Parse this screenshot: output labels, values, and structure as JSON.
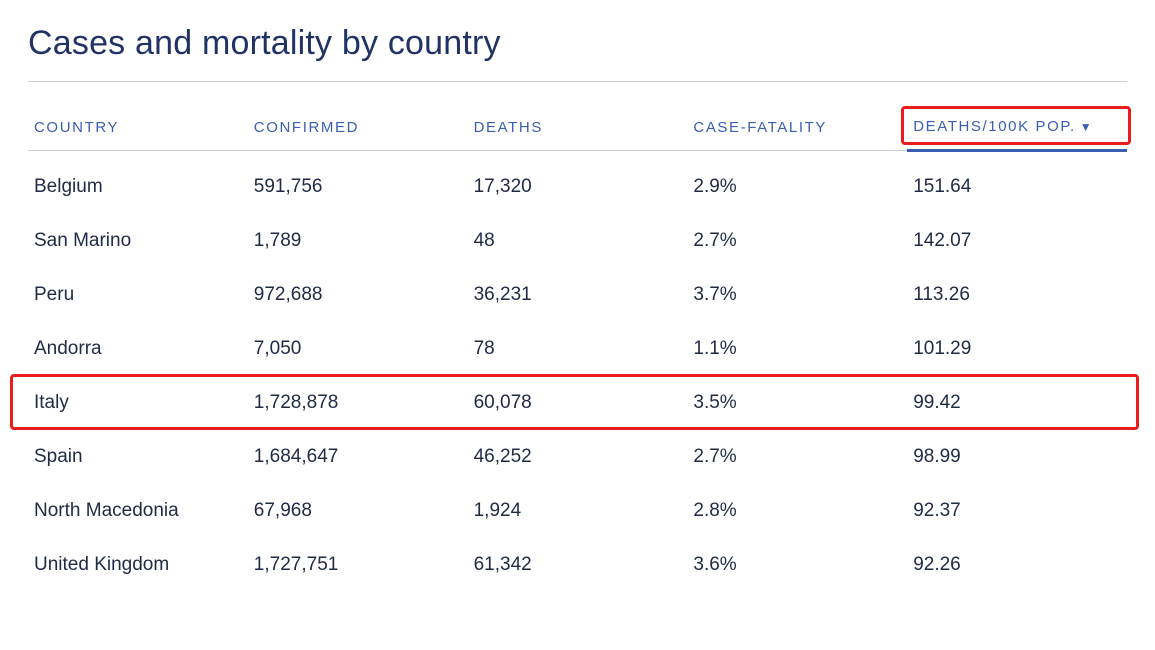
{
  "title": "Cases and mortality by country",
  "table": {
    "type": "table",
    "title_color": "#213365",
    "title_fontsize": 34,
    "header_color": "#3a5fb0",
    "header_fontsize": 15,
    "header_letter_spacing": 1.6,
    "cell_color": "#1f2a44",
    "cell_fontsize": 19,
    "rule_color": "#c9d1de",
    "sorted_underline_color": "#3a5fb0",
    "highlight_border_color": "#e91d1d",
    "sort_arrow_glyph": "▼",
    "sorted_column_index": 4,
    "highlighted_header_index": 4,
    "highlighted_row_index": 4,
    "columns": [
      {
        "label": "COUNTRY",
        "width_pct": 20,
        "align": "left"
      },
      {
        "label": "CONFIRMED",
        "width_pct": 20,
        "align": "left"
      },
      {
        "label": "DEATHS",
        "width_pct": 20,
        "align": "left"
      },
      {
        "label": "CASE-FATALITY",
        "width_pct": 20,
        "align": "left"
      },
      {
        "label": "DEATHS/100K POP.",
        "width_pct": 20,
        "align": "left"
      }
    ],
    "rows": [
      {
        "country": "Belgium",
        "confirmed": "591,756",
        "deaths": "17,320",
        "cfr": "2.9%",
        "d100k": "151.64"
      },
      {
        "country": "San Marino",
        "confirmed": "1,789",
        "deaths": "48",
        "cfr": "2.7%",
        "d100k": "142.07"
      },
      {
        "country": "Peru",
        "confirmed": "972,688",
        "deaths": "36,231",
        "cfr": "3.7%",
        "d100k": "113.26"
      },
      {
        "country": "Andorra",
        "confirmed": "7,050",
        "deaths": "78",
        "cfr": "1.1%",
        "d100k": "101.29"
      },
      {
        "country": "Italy",
        "confirmed": "1,728,878",
        "deaths": "60,078",
        "cfr": "3.5%",
        "d100k": "99.42"
      },
      {
        "country": "Spain",
        "confirmed": "1,684,647",
        "deaths": "46,252",
        "cfr": "2.7%",
        "d100k": "98.99"
      },
      {
        "country": "North Macedonia",
        "confirmed": "67,968",
        "deaths": "1,924",
        "cfr": "2.8%",
        "d100k": "92.37"
      },
      {
        "country": "United Kingdom",
        "confirmed": "1,727,751",
        "deaths": "61,342",
        "cfr": "3.6%",
        "d100k": "92.26"
      }
    ]
  }
}
